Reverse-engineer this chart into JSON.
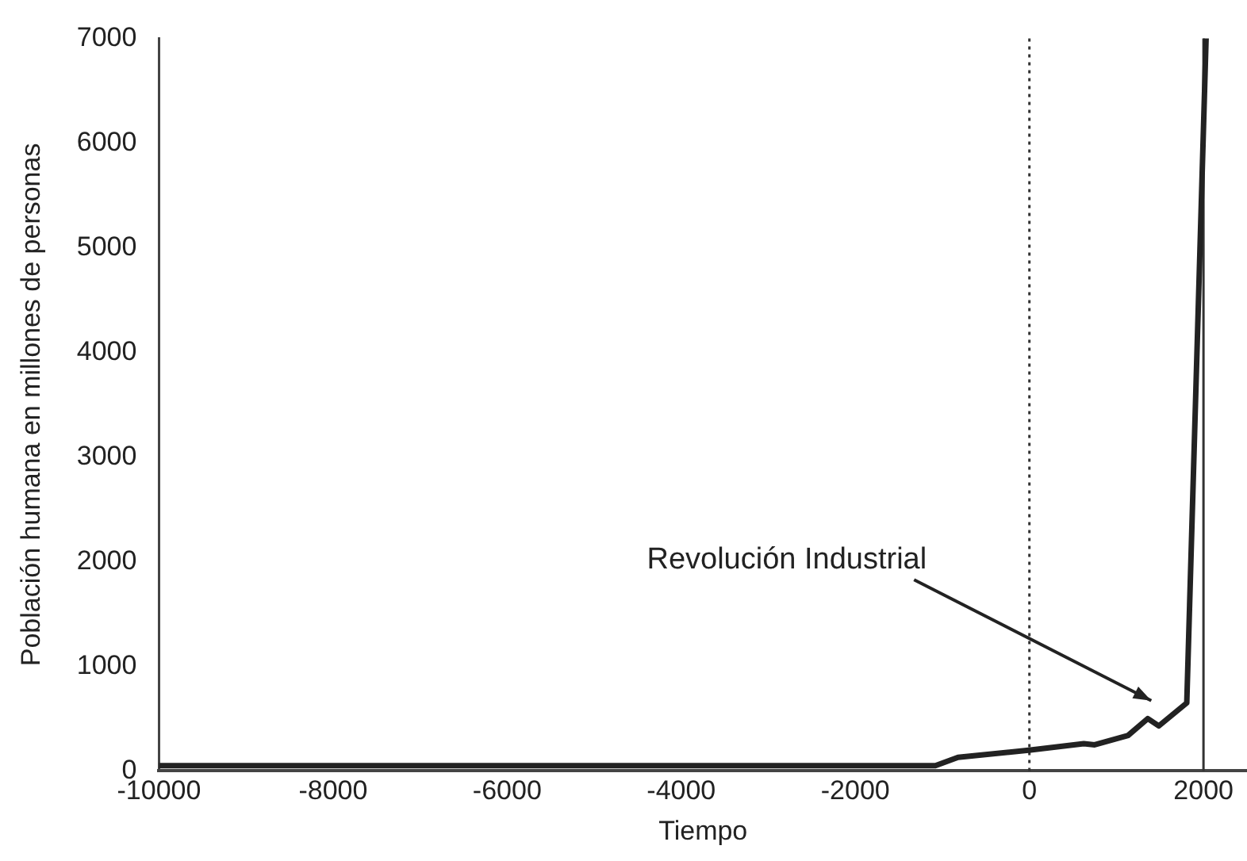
{
  "chart_data": {
    "type": "line",
    "xlabel": "Tiempo",
    "ylabel": "Población humana en millones de personas",
    "x": [
      -10000,
      -1080,
      -820,
      13,
      625,
      750,
      1135,
      1360,
      1487,
      1808,
      2030
    ],
    "series": [
      {
        "color": "#222222",
        "values": [
          50,
          50,
          130,
          200,
          260,
          250,
          340,
          500,
          430,
          650,
          7000
        ]
      }
    ],
    "xlim": [
      -10000,
      2500
    ],
    "xticks": [
      -10000,
      -8000,
      -6000,
      -4000,
      -2000,
      0,
      2000
    ],
    "ylim": [
      0,
      7000
    ],
    "yticks": [
      0,
      1000,
      2000,
      3000,
      4000,
      5000,
      6000,
      7000
    ],
    "grid": false,
    "legend": false,
    "marker": "none",
    "line_style": "solid",
    "ref_lines": [
      {
        "axis": "x",
        "value": 0,
        "line_style": "dotted",
        "color": "#333333"
      },
      {
        "axis": "x",
        "value": 2000,
        "line_style": "solid",
        "color": "#333333"
      }
    ],
    "annotations": [
      "Revolución Industrial"
    ]
  }
}
